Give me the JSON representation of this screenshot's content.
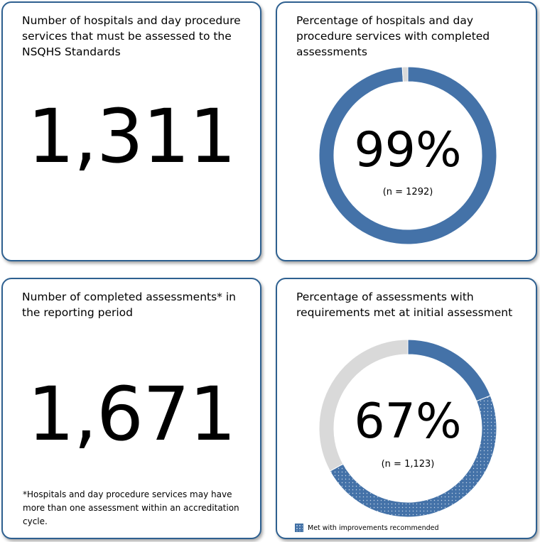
{
  "colors": {
    "border": "#2e6090",
    "accent_blue": "#4472a8",
    "remainder_gray": "#d9d9d9"
  },
  "panels": {
    "hospitals_count": {
      "title": "Number of hospitals and day procedure services that must be assessed to the NSQHS Standards",
      "value": "1,311"
    },
    "completed_assessments_pct": {
      "title": "Percentage of hospitals and day procedure services with completed assessments",
      "value_label": "99%",
      "n_label": "(n = 1292)"
    },
    "completed_assessments_count": {
      "title": "Number of completed assessments* in the reporting period",
      "value": "1,671",
      "footnote": "*Hospitals and day procedure services may have more than one assessment within an accreditation cycle."
    },
    "requirements_met_pct": {
      "title": "Percentage of assessments with requirements met at initial assessment",
      "value_label": "67%",
      "n_label": "(n = 1,123)",
      "legend_label": "Met with improvements recommended"
    }
  },
  "chart_data": [
    {
      "type": "pie",
      "donut": true,
      "slices": [
        {
          "value": 99,
          "color": "#4472a8",
          "pattern": "solid"
        },
        {
          "value": 1,
          "color": "#d9d9d9",
          "pattern": "solid"
        }
      ],
      "center_label": "99%",
      "sub_label": "(n = 1292)"
    },
    {
      "type": "pie",
      "donut": true,
      "slices": [
        {
          "value": 19,
          "color": "#4472a8",
          "pattern": "solid"
        },
        {
          "name": "Met with improvements recommended",
          "value": 48,
          "color": "#4472a8",
          "pattern": "dotted"
        },
        {
          "value": 33,
          "color": "#d9d9d9",
          "pattern": "solid"
        }
      ],
      "center_label": "67%",
      "sub_label": "(n = 1,123)",
      "legend_placement": "bottom-left"
    }
  ]
}
